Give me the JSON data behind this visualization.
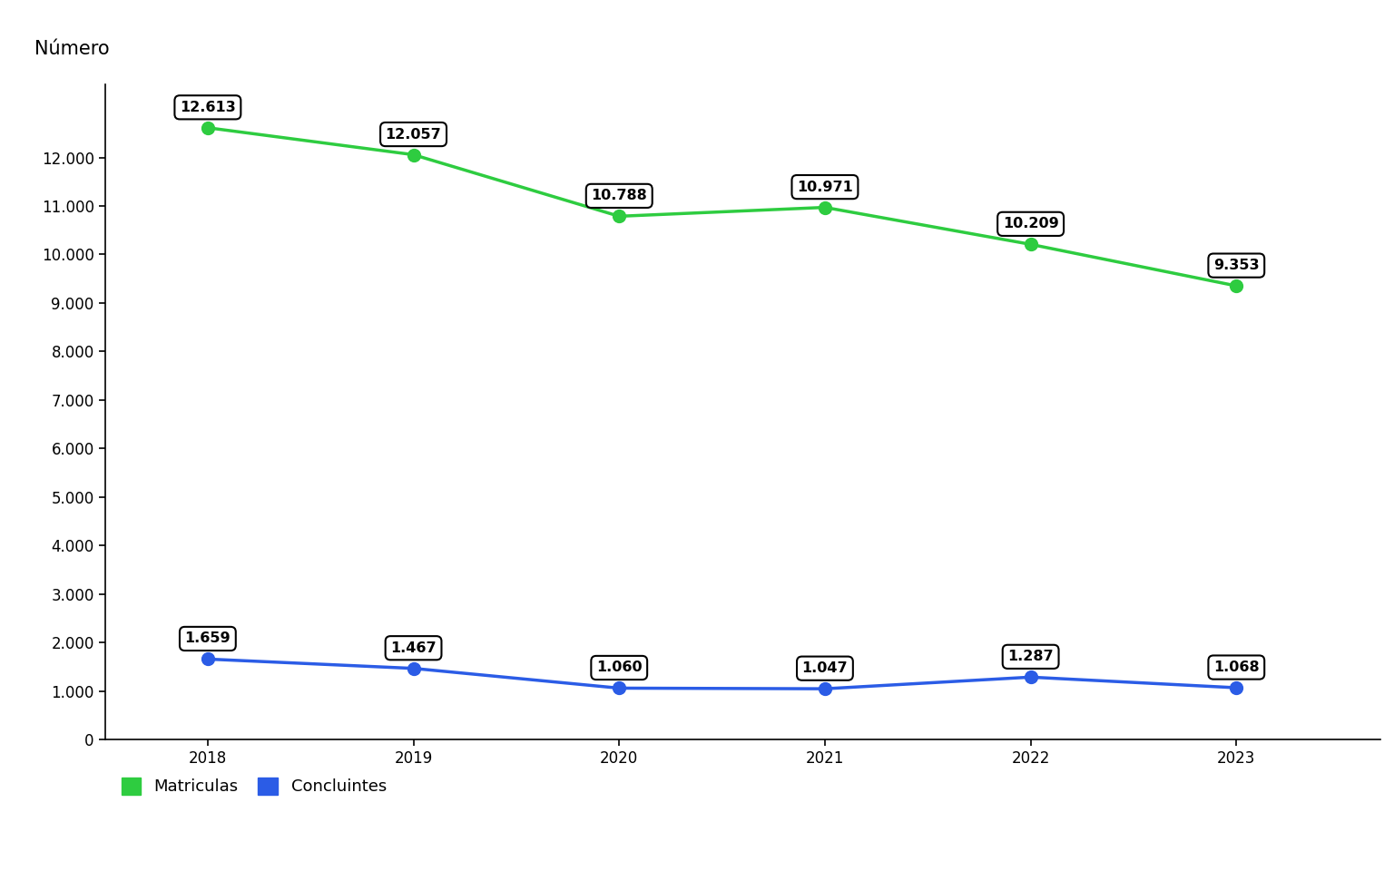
{
  "years": [
    2018,
    2019,
    2020,
    2021,
    2022,
    2023
  ],
  "matriculas": [
    12613,
    12057,
    10788,
    10971,
    10209,
    9353
  ],
  "concluintes": [
    1659,
    1467,
    1060,
    1047,
    1287,
    1068
  ],
  "matriculas_color": "#2ecc40",
  "concluintes_color": "#2b5ce6",
  "line_width": 2.5,
  "marker_size": 10,
  "ylabel": "Número",
  "ylim": [
    0,
    13500
  ],
  "yticks": [
    0,
    1000,
    2000,
    3000,
    4000,
    5000,
    6000,
    7000,
    8000,
    9000,
    10000,
    11000,
    12000
  ],
  "legend_labels": [
    "Matriculas",
    "Concluintes"
  ],
  "background_color": "#ffffff",
  "annotation_fontsize": 11.5,
  "tick_fontsize": 12,
  "ylabel_fontsize": 15
}
